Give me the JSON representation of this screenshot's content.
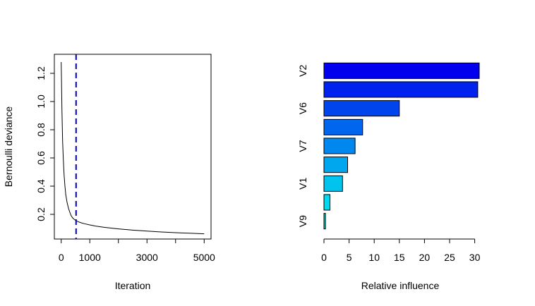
{
  "chart_data": [
    {
      "type": "line",
      "title": "",
      "xlabel": "Iteration",
      "ylabel": "Bernoulli deviance",
      "xlim": [
        -240,
        5240
      ],
      "ylim": [
        0.025,
        1.335
      ],
      "x_ticks": [
        0,
        1000,
        3000,
        5000
      ],
      "x_tick_labels": [
        "0",
        "1000",
        "3000",
        "5000"
      ],
      "x_minor_ticks": [
        2000,
        4000
      ],
      "y_ticks": [
        0.2,
        0.4,
        0.6,
        0.8,
        1.0,
        1.2
      ],
      "y_tick_labels": [
        "0.2",
        "0.4",
        "0.6",
        "0.8",
        "1.0",
        "1.2"
      ],
      "series": [
        {
          "color": "#000000",
          "x": [
            0,
            10,
            25,
            50,
            75,
            100,
            130,
            160,
            200,
            250,
            300,
            350,
            400,
            450,
            500,
            550,
            600,
            700,
            800,
            1000,
            1200,
            1500,
            2000,
            2500,
            3000,
            3500,
            4000,
            4500,
            5000
          ],
          "y": [
            1.28,
            1.16,
            0.95,
            0.72,
            0.58,
            0.48,
            0.4,
            0.34,
            0.29,
            0.245,
            0.215,
            0.19,
            0.175,
            0.165,
            0.158,
            0.152,
            0.147,
            0.14,
            0.134,
            0.125,
            0.117,
            0.108,
            0.097,
            0.088,
            0.081,
            0.075,
            0.07,
            0.066,
            0.062
          ]
        }
      ],
      "vline": {
        "x": 520,
        "color": "#0000cc",
        "style": "dashed"
      }
    },
    {
      "type": "bar",
      "orientation": "horizontal",
      "title": "",
      "xlabel": "Relative influence",
      "ylabel": "",
      "xlim": [
        0,
        30.9
      ],
      "x_ticks": [
        0,
        5,
        10,
        15,
        20,
        25,
        30
      ],
      "x_tick_labels": [
        "0",
        "5",
        "10",
        "15",
        "20",
        "25",
        "30"
      ],
      "category_labels": [
        "V2",
        "V6",
        "V7",
        "V1",
        "V9"
      ],
      "bars": [
        {
          "value": 30.9,
          "color": "#0000ee"
        },
        {
          "value": 30.6,
          "color": "#0022ee"
        },
        {
          "value": 15.0,
          "color": "#0044ee"
        },
        {
          "value": 7.7,
          "color": "#0066ee"
        },
        {
          "value": 6.2,
          "color": "#0088ee"
        },
        {
          "value": 4.7,
          "color": "#00a6ee"
        },
        {
          "value": 3.7,
          "color": "#00c4ee"
        },
        {
          "value": 1.2,
          "color": "#00d8ee"
        },
        {
          "value": 0.3,
          "color": "#00e4d8"
        }
      ]
    }
  ]
}
